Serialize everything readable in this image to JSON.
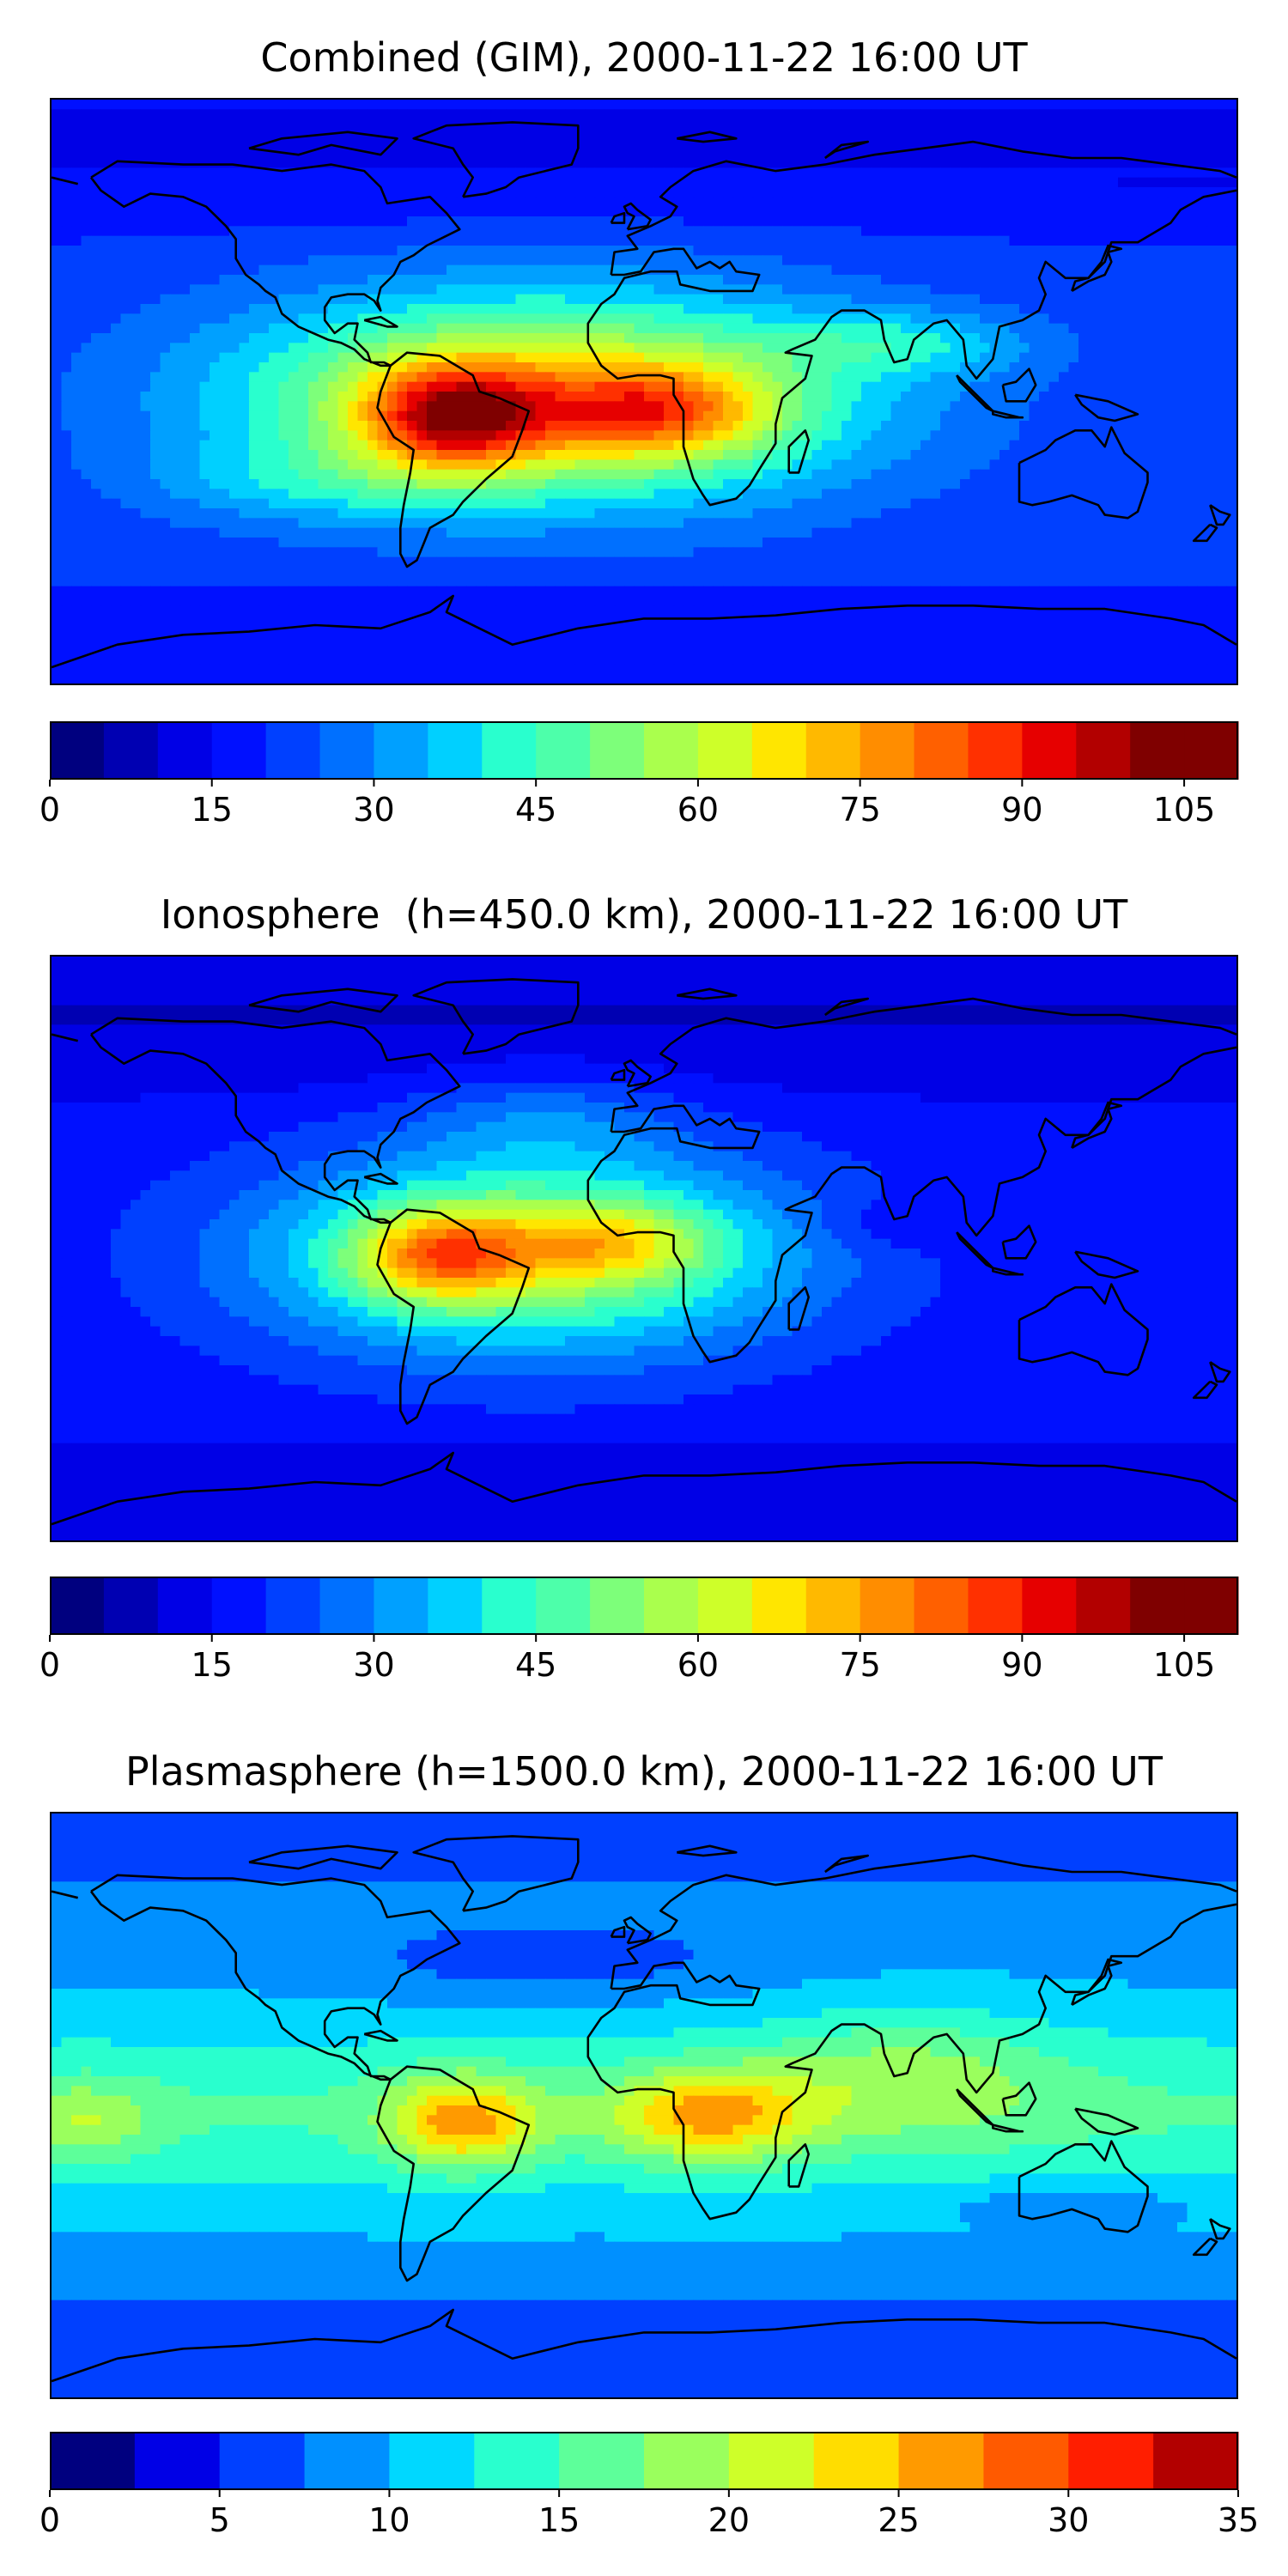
{
  "colors": {
    "jet": [
      "#00007f",
      "#0000b2",
      "#0000e6",
      "#0010ff",
      "#0040ff",
      "#0070ff",
      "#00a0ff",
      "#00d0ff",
      "#29ffce",
      "#4dffaa",
      "#7dff7a",
      "#aaff4d",
      "#ceff29",
      "#ffe600",
      "#ffb900",
      "#ff8d00",
      "#ff6000",
      "#ff3000",
      "#e60000",
      "#b20000",
      "#7f0000"
    ],
    "jet14": [
      "#00007f",
      "#0000e6",
      "#0040ff",
      "#0090ff",
      "#00d8ff",
      "#29ffce",
      "#5dff9a",
      "#9aff5d",
      "#ceff29",
      "#ffdd00",
      "#ff9a00",
      "#ff5a00",
      "#ff1e00",
      "#b20000"
    ],
    "coastline": "#000000"
  },
  "chart_data": [
    {
      "type": "heatmap",
      "title": "Combined (GIM), 2000-11-22 16:00 UT",
      "date": "2000-11-22",
      "time": "16:00 UT",
      "colorbar": {
        "min": 0,
        "max": 110,
        "step": 5,
        "ticks": [
          0,
          15,
          30,
          45,
          60,
          75,
          90,
          105
        ],
        "ticklabels": [
          "0",
          "15",
          "30",
          "45",
          "60",
          "75",
          "90",
          "105"
        ]
      },
      "peaks": [
        {
          "region": "South America (Amazon)",
          "lon": -60,
          "lat": -7,
          "value": 108
        },
        {
          "region": "Equatorial Atlantic / Central Africa",
          "lon": -5,
          "lat": -5,
          "value": 95
        }
      ],
      "background_value": 15
    },
    {
      "type": "heatmap",
      "title": "Ionosphere  (h=450.0 km), 2000-11-22 16:00 UT",
      "date": "2000-11-22",
      "time": "16:00 UT",
      "altitude_km": 450.0,
      "colorbar": {
        "min": 0,
        "max": 110,
        "step": 5,
        "ticks": [
          0,
          15,
          30,
          45,
          60,
          75,
          90,
          105
        ],
        "ticklabels": [
          "0",
          "15",
          "30",
          "45",
          "60",
          "75",
          "90",
          "105"
        ]
      },
      "peaks": [
        {
          "region": "South America",
          "lon": -63,
          "lat": 0,
          "value": 88
        },
        {
          "region": "Equatorial Atlantic / Central Africa",
          "lon": -15,
          "lat": 0,
          "value": 78
        }
      ],
      "background_value": 12
    },
    {
      "type": "heatmap",
      "title": "Plasmasphere (h=1500.0 km), 2000-11-22 16:00 UT",
      "date": "2000-11-22",
      "time": "16:00 UT",
      "altitude_km": 1500.0,
      "colorbar": {
        "min": 0,
        "max": 35,
        "step": 2.5,
        "ticks": [
          0,
          5,
          10,
          15,
          20,
          25,
          30,
          35
        ],
        "ticklabels": [
          "0",
          "5",
          "10",
          "15",
          "20",
          "25",
          "30",
          "35"
        ]
      },
      "peaks": [
        {
          "region": "South America",
          "lon": -55,
          "lat": -7,
          "value": 27
        },
        {
          "region": "Central Africa",
          "lon": 20,
          "lat": -5,
          "value": 27
        },
        {
          "region": "Pacific equatorial band",
          "lon": -170,
          "lat": -5,
          "value": 16
        }
      ],
      "background_value": 6
    }
  ]
}
